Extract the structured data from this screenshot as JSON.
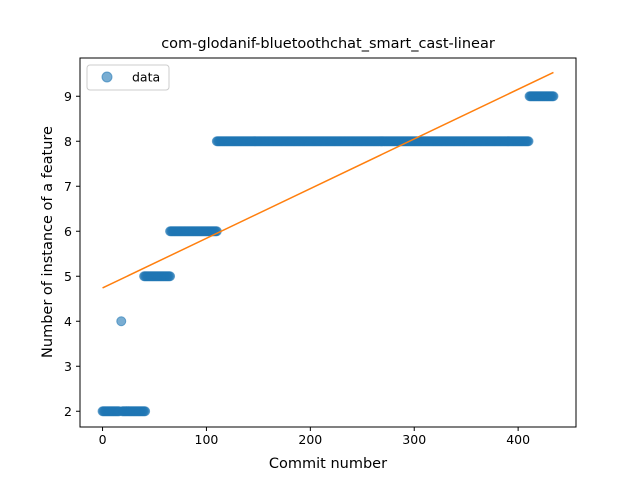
{
  "chart_data": {
    "type": "scatter",
    "title": "com-glodanif-bluetoothchat_smart_cast-linear",
    "xlabel": "Commit number",
    "ylabel": "Number of instance of a feature",
    "xlim": [
      -21.7,
      455.7
    ],
    "ylim": [
      1.65,
      9.85
    ],
    "xticks": [
      0,
      100,
      200,
      300,
      400
    ],
    "yticks": [
      2,
      3,
      4,
      5,
      6,
      7,
      8,
      9
    ],
    "legend": {
      "position": "top-left",
      "entries": [
        "data"
      ]
    },
    "grid": false,
    "colors": {
      "points": "#1f77b4",
      "fit": "#ff7f0e"
    },
    "series": [
      {
        "name": "data",
        "kind": "points",
        "segments": [
          {
            "x_from": 0,
            "x_to": 16,
            "y": 2
          },
          {
            "x_from": 18,
            "x_to": 18,
            "y": 4
          },
          {
            "x_from": 19,
            "x_to": 41,
            "y": 2
          },
          {
            "x_from": 40,
            "x_to": 65,
            "y": 5
          },
          {
            "x_from": 65,
            "x_to": 110,
            "y": 6
          },
          {
            "x_from": 110,
            "x_to": 410,
            "y": 8
          },
          {
            "x_from": 411,
            "x_to": 434,
            "y": 9
          }
        ]
      },
      {
        "kind": "line",
        "points": [
          [
            0,
            4.74
          ],
          [
            434,
            9.53
          ]
        ]
      }
    ]
  }
}
